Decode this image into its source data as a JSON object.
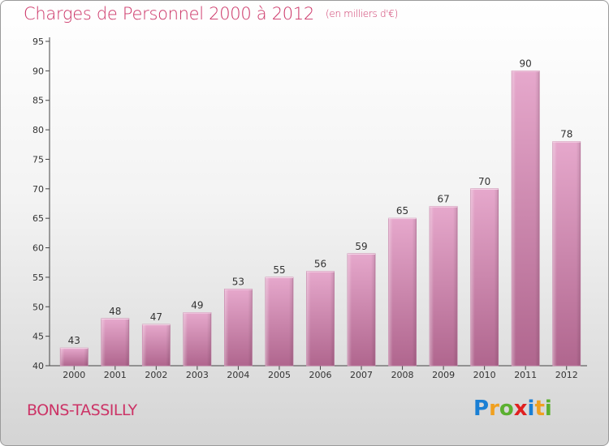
{
  "header": {
    "title": "Charges de Personnel 2000 à 2012",
    "subtitle": "(en milliers d'€)"
  },
  "footer": {
    "town": "BONS-TASSILLY",
    "logo_letters": [
      "P",
      "r",
      "o",
      "x",
      "i",
      "t",
      "i"
    ],
    "logo_colors": [
      "#1a7fd4",
      "#f0a020",
      "#5bb030",
      "#e02020",
      "#1a7fd4",
      "#f0a020",
      "#5bb030"
    ]
  },
  "chart_data": {
    "type": "bar",
    "title": "Charges de Personnel 2000 à 2012",
    "subtitle": "(en milliers d'€)",
    "categories": [
      "2000",
      "2001",
      "2002",
      "2003",
      "2004",
      "2005",
      "2006",
      "2007",
      "2008",
      "2009",
      "2010",
      "2011",
      "2012"
    ],
    "values": [
      43,
      48,
      47,
      49,
      53,
      55,
      56,
      59,
      65,
      67,
      70,
      90,
      78
    ],
    "ylim": [
      40,
      95
    ],
    "yticks": [
      40,
      45,
      50,
      55,
      60,
      65,
      70,
      75,
      80,
      85,
      90,
      95
    ],
    "bar_color": "#d990b8",
    "grid": false
  }
}
